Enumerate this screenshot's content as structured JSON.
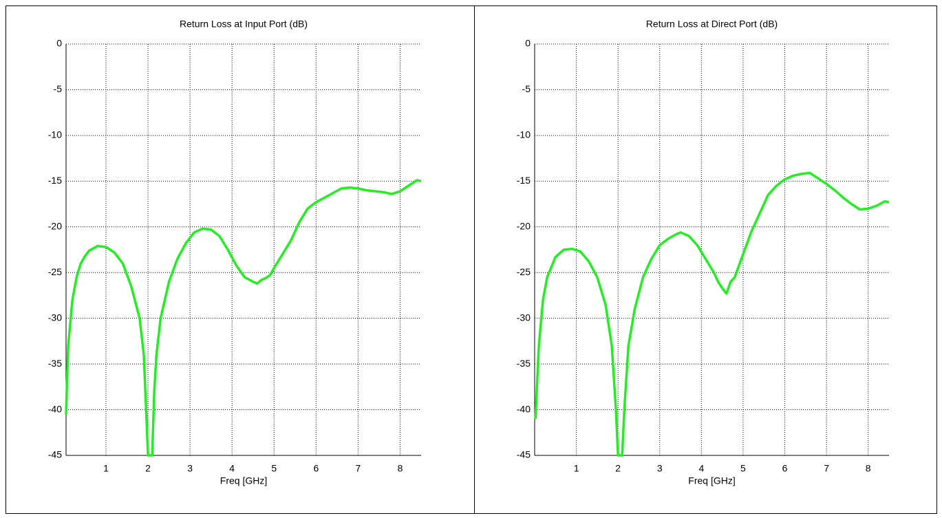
{
  "chart_data": [
    {
      "type": "line",
      "title": "Return Loss at Input Port (dB)",
      "x_label": "Freq [GHz]",
      "xlim": [
        0.05,
        8.5
      ],
      "xticks": [
        1,
        2,
        3,
        4,
        5,
        6,
        7,
        8
      ],
      "ylim": [
        -45,
        0
      ],
      "yticks": [
        0,
        -5,
        -10,
        -15,
        -20,
        -25,
        -30,
        -35,
        -40,
        -45
      ],
      "grid": true,
      "series": [
        {
          "color": "#22ee22",
          "x": [
            0.05,
            0.1,
            0.2,
            0.3,
            0.4,
            0.5,
            0.6,
            0.8,
            1.0,
            1.2,
            1.4,
            1.6,
            1.8,
            1.9,
            2.0,
            2.1,
            2.15,
            2.2,
            2.3,
            2.5,
            2.7,
            2.9,
            3.1,
            3.3,
            3.5,
            3.7,
            3.9,
            4.1,
            4.3,
            4.5,
            4.6,
            4.7,
            4.8,
            4.9,
            5.0,
            5.2,
            5.4,
            5.6,
            5.8,
            6.0,
            6.2,
            6.4,
            6.6,
            6.8,
            7.0,
            7.2,
            7.4,
            7.6,
            7.8,
            8.0,
            8.2,
            8.4,
            8.5
          ],
          "values": [
            -40.5,
            -33,
            -28,
            -25.5,
            -24,
            -23.2,
            -22.6,
            -22.1,
            -22.2,
            -22.8,
            -24,
            -26.5,
            -30,
            -34,
            -45,
            -45,
            -38,
            -34,
            -30,
            -26,
            -23.5,
            -21.8,
            -20.6,
            -20.2,
            -20.3,
            -21,
            -22.5,
            -24.2,
            -25.5,
            -26,
            -26.2,
            -25.8,
            -25.6,
            -25.3,
            -24.5,
            -23,
            -21.5,
            -19.5,
            -18,
            -17.3,
            -16.8,
            -16.3,
            -15.8,
            -15.7,
            -15.8,
            -16,
            -16.1,
            -16.2,
            -16.4,
            -16.1,
            -15.5,
            -14.9,
            -15
          ]
        }
      ]
    },
    {
      "type": "line",
      "title": "Return Loss at Direct Port (dB)",
      "x_label": "Freq [GHz]",
      "xlim": [
        0,
        8.5
      ],
      "xticks": [
        1,
        2,
        3,
        4,
        5,
        6,
        7,
        8
      ],
      "ylim": [
        -45,
        0
      ],
      "yticks": [
        0,
        -5,
        -10,
        -15,
        -20,
        -25,
        -30,
        -35,
        -40,
        -45
      ],
      "grid": true,
      "series": [
        {
          "color": "#22ee22",
          "x": [
            0.02,
            0.1,
            0.2,
            0.3,
            0.5,
            0.7,
            0.9,
            1.1,
            1.3,
            1.5,
            1.7,
            1.85,
            1.95,
            2.0,
            2.1,
            2.15,
            2.25,
            2.4,
            2.6,
            2.8,
            3.0,
            3.2,
            3.4,
            3.5,
            3.7,
            3.9,
            4.1,
            4.3,
            4.4,
            4.5,
            4.6,
            4.7,
            4.8,
            5.0,
            5.2,
            5.4,
            5.6,
            5.8,
            6.0,
            6.2,
            6.4,
            6.6,
            6.8,
            7.0,
            7.2,
            7.4,
            7.6,
            7.8,
            8.0,
            8.2,
            8.4,
            8.5
          ],
          "values": [
            -41,
            -33,
            -28,
            -25.5,
            -23.3,
            -22.5,
            -22.4,
            -22.7,
            -23.8,
            -25.5,
            -28.5,
            -33,
            -40,
            -45,
            -45,
            -40,
            -33,
            -29,
            -25.5,
            -23.5,
            -22,
            -21.3,
            -20.8,
            -20.6,
            -21,
            -22,
            -23.5,
            -25,
            -26,
            -26.7,
            -27.3,
            -26,
            -25.5,
            -23,
            -20.5,
            -18.5,
            -16.5,
            -15.5,
            -14.8,
            -14.4,
            -14.2,
            -14.1,
            -14.7,
            -15.3,
            -16,
            -16.8,
            -17.5,
            -18.1,
            -18,
            -17.7,
            -17.2,
            -17.3
          ]
        }
      ]
    }
  ]
}
